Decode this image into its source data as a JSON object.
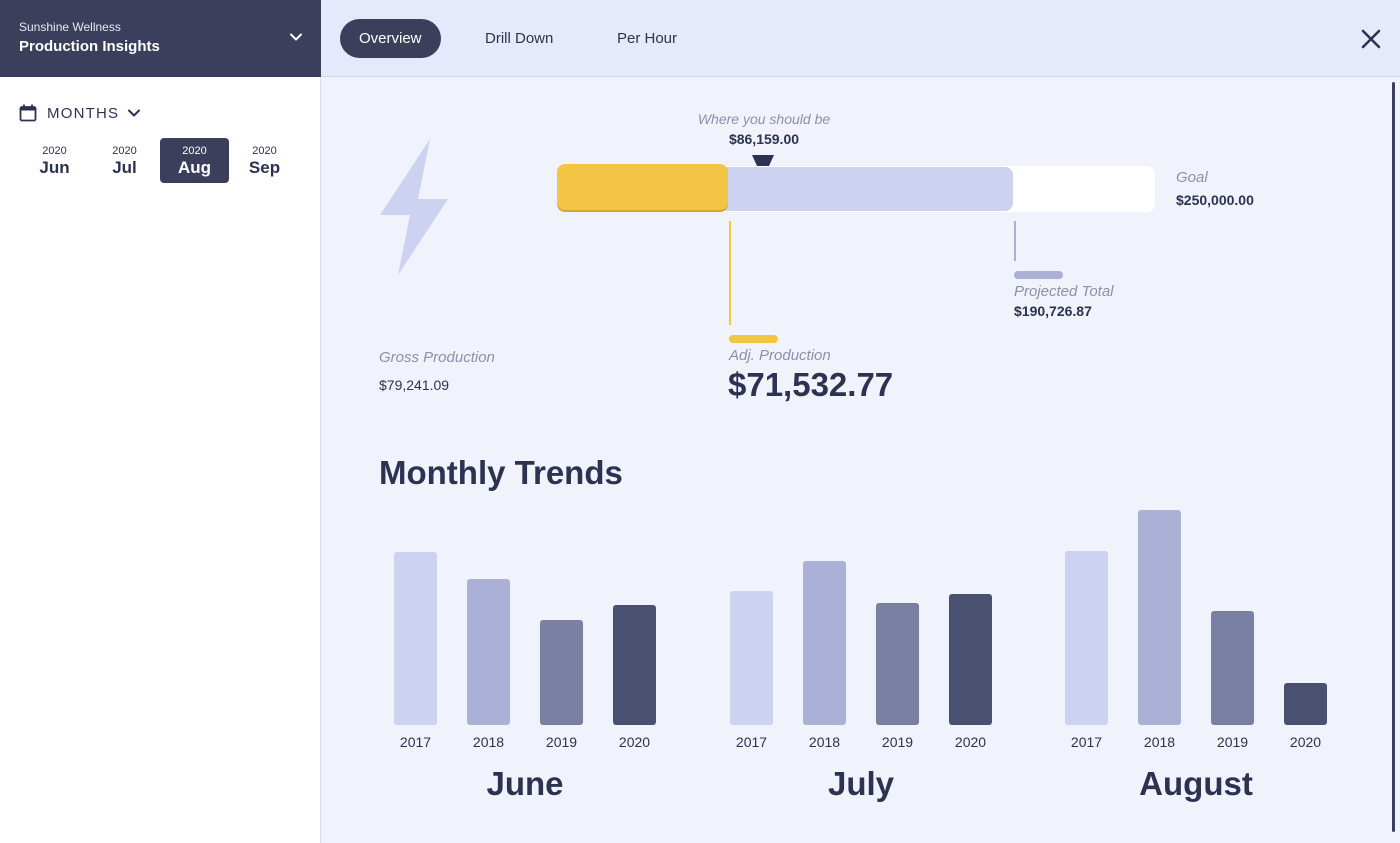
{
  "sidebar": {
    "org_name": "Sunshine Wellness",
    "app_name": "Production Insights",
    "period_toggle": "MONTHS",
    "months": [
      {
        "year": "2020",
        "month": "Jun",
        "active": false
      },
      {
        "year": "2020",
        "month": "Jul",
        "active": false
      },
      {
        "year": "2020",
        "month": "Aug",
        "active": true
      },
      {
        "year": "2020",
        "month": "Sep",
        "active": false
      }
    ]
  },
  "tabs": [
    {
      "label": "Overview",
      "active": true
    },
    {
      "label": "Drill Down",
      "active": false
    },
    {
      "label": "Per Hour",
      "active": false
    }
  ],
  "icons": {
    "brand_chevron": "chevron-down-icon",
    "calendar": "calendar-icon",
    "months_chevron": "chevron-down-icon",
    "close": "close-icon",
    "bolt": "lightning-bolt-icon"
  },
  "colors": {
    "brand": "#3b3f5c",
    "accent_yellow": "#f2c544",
    "projected": "#cdd2f0",
    "series_2017": "#cdd2f0",
    "series_2018": "#aab0d6",
    "series_2019": "#7a80a3",
    "series_2020": "#4a5070"
  },
  "progress": {
    "should_be_label": "Where you should be",
    "should_be_value": "$86,159.00",
    "goal_label": "Goal",
    "goal_value": "$250,000.00",
    "goal_amount": 250000,
    "should_be_amount": 86159,
    "adj_amount": 71532.77,
    "projected_amount": 190726.87,
    "adj_label": "Adj. Production",
    "adj_value": "$71,532.77",
    "projected_label": "Projected Total",
    "projected_value": "$190,726.87",
    "gross_label": "Gross Production",
    "gross_value": "$79,241.09"
  },
  "trends": {
    "title": "Monthly Trends"
  },
  "chart_data": {
    "type": "bar",
    "groups": [
      "June",
      "July",
      "August"
    ],
    "categories": [
      "2017",
      "2018",
      "2019",
      "2020"
    ],
    "series": [
      {
        "group": "June",
        "values": [
          173,
          146,
          105,
          120
        ]
      },
      {
        "group": "July",
        "values": [
          134,
          164,
          122,
          131
        ]
      },
      {
        "group": "August",
        "values": [
          174,
          215,
          114,
          42
        ]
      }
    ],
    "title": "Monthly Trends",
    "xlabel": "",
    "ylabel": "",
    "ylim": [
      0,
      215
    ],
    "grid": false
  }
}
